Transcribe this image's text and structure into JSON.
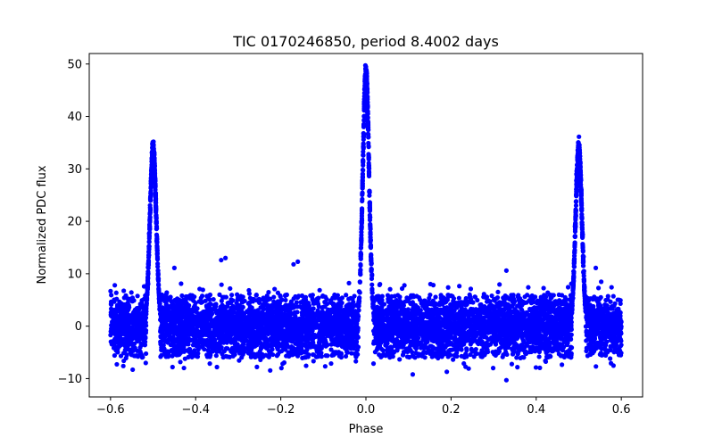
{
  "chart_data": {
    "type": "scatter",
    "title": "TIC 0170246850, period 8.4002 days",
    "xlabel": "Phase",
    "ylabel": "Normalized PDC flux",
    "xlim": [
      -0.65,
      0.65
    ],
    "ylim": [
      -13.5,
      52
    ],
    "xticks": [
      -0.6,
      -0.4,
      -0.2,
      0.0,
      0.2,
      0.4,
      0.6
    ],
    "xtick_labels": [
      "−0.6",
      "−0.4",
      "−0.2",
      "0.0",
      "0.2",
      "0.4",
      "0.6"
    ],
    "yticks": [
      -10,
      0,
      10,
      20,
      30,
      40,
      50
    ],
    "ytick_labels": [
      "−10",
      "0",
      "10",
      "20",
      "30",
      "40",
      "50"
    ],
    "grid": false,
    "marker_color": "#0000ff",
    "series": [
      {
        "name": "flux",
        "x_range": [
          -0.6,
          0.6
        ],
        "baseline_scatter_range": [
          -6,
          6
        ],
        "peaks": [
          {
            "phase": -0.5,
            "peak_flux": 34.5
          },
          {
            "phase": 0.0,
            "peak_flux": 48.7
          },
          {
            "phase": 0.5,
            "peak_flux": 34.6
          }
        ],
        "outliers": [
          {
            "x": -0.33,
            "y": 13.0
          },
          {
            "x": -0.34,
            "y": 12.6
          },
          {
            "x": -0.45,
            "y": 11.1
          },
          {
            "x": -0.16,
            "y": 12.3
          },
          {
            "x": -0.17,
            "y": 11.8
          },
          {
            "x": 0.33,
            "y": 10.6
          },
          {
            "x": 0.54,
            "y": 11.1
          },
          {
            "x": -0.59,
            "y": 7.8
          },
          {
            "x": 0.33,
            "y": -10.3
          },
          {
            "x": 0.11,
            "y": -9.2
          },
          {
            "x": -0.35,
            "y": -7.8
          },
          {
            "x": 0.19,
            "y": -8.7
          },
          {
            "x": -0.57,
            "y": -7.6
          }
        ]
      }
    ]
  }
}
